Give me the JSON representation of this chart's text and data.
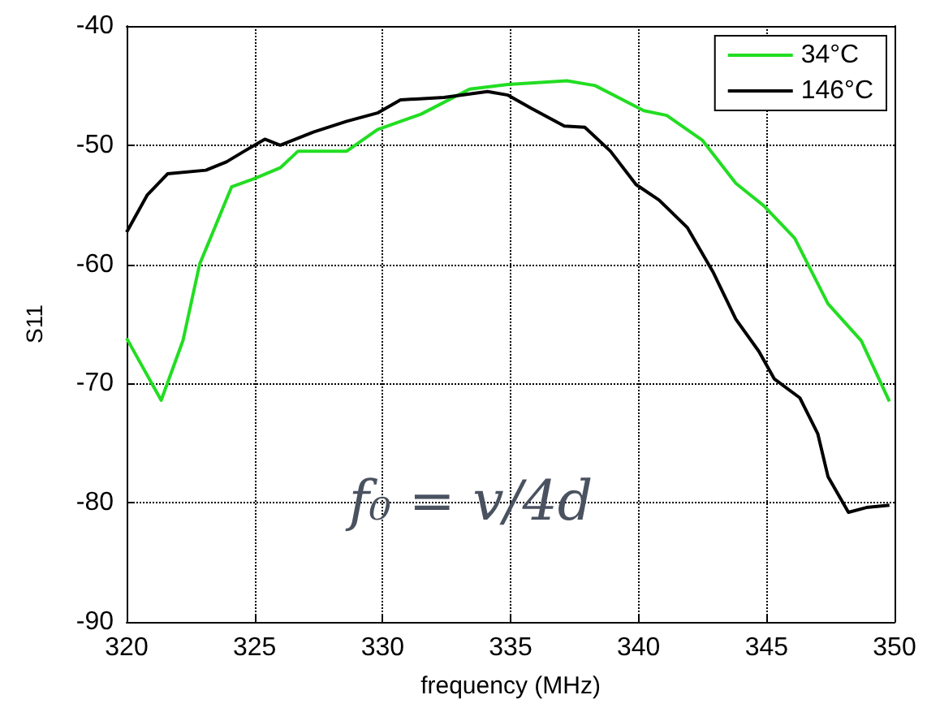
{
  "chart_data": {
    "type": "line",
    "xlabel": "frequency (MHz)",
    "ylabel": "S11",
    "xlim": [
      320,
      350
    ],
    "xticks": [
      320,
      325,
      330,
      335,
      340,
      345,
      350
    ],
    "ylim": [
      -90,
      -40
    ],
    "yticks": [
      -90,
      -80,
      -70,
      -60,
      -50,
      -40
    ],
    "grid": true,
    "legend": "top right",
    "line_style": "solid",
    "marker": "none",
    "series": [
      {
        "name": "34°C",
        "color": "#22dd22",
        "x": [
          320,
          321.35,
          322.2,
          322.85,
          324.1,
          325,
          326,
          326.7,
          328.6,
          329.8,
          331.5,
          333.4,
          334.9,
          337.2,
          338.3,
          340.2,
          341.1,
          342.5,
          343.8,
          344.9,
          346.1,
          347.4,
          348.7,
          349.8
        ],
        "values": [
          -66.2,
          -71.4,
          -66.4,
          -60,
          -53.5,
          -52.8,
          -51.9,
          -50.5,
          -50.5,
          -48.7,
          -47.4,
          -45.3,
          -44.9,
          -44.6,
          -45,
          -47.1,
          -47.5,
          -49.6,
          -53.2,
          -55.1,
          -57.8,
          -63.3,
          -66.4,
          -71.5
        ]
      },
      {
        "name": "146°C",
        "color": "#000000",
        "x": [
          320,
          320.8,
          321.6,
          323.1,
          323.9,
          324.6,
          325.4,
          326,
          327.3,
          328.6,
          329.8,
          330.7,
          332.4,
          334.1,
          334.9,
          335.8,
          337.1,
          337.9,
          338.9,
          339.9,
          340.8,
          341.9,
          342.9,
          343.8,
          344.7,
          345.3,
          346.3,
          347,
          347.4,
          348.2,
          348.9,
          349.8
        ],
        "values": [
          -57.3,
          -54.2,
          -52.4,
          -52.1,
          -51.4,
          -50.5,
          -49.5,
          -50,
          -48.9,
          -48,
          -47.3,
          -46.2,
          -46,
          -45.5,
          -45.8,
          -46.9,
          -48.4,
          -48.5,
          -50.5,
          -53.3,
          -54.6,
          -56.9,
          -60.6,
          -64.6,
          -67.3,
          -69.6,
          -71.2,
          -74.2,
          -77.8,
          -80.8,
          -80.4,
          -80.2
        ]
      }
    ],
    "annotations": [
      "f₀ = v/4d"
    ]
  }
}
